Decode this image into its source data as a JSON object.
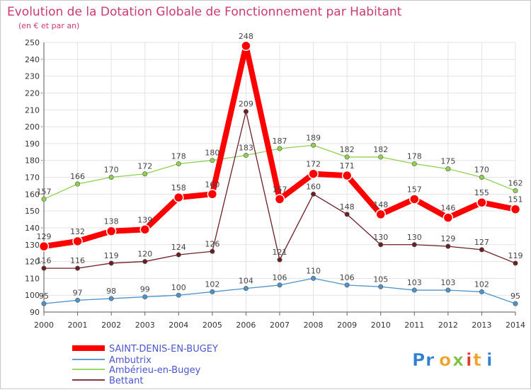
{
  "chart_data": {
    "type": "line",
    "title": "Evolution de la Dotation Globale de Fonctionnement par Habitant",
    "subtitle": "(en € et par an)",
    "xlabel": "",
    "ylabel": "",
    "x": [
      2000,
      2001,
      2002,
      2003,
      2004,
      2005,
      2006,
      2007,
      2008,
      2009,
      2010,
      2011,
      2012,
      2013,
      2014
    ],
    "ylim": [
      90,
      250
    ],
    "yticks": [
      90,
      100,
      110,
      120,
      130,
      140,
      150,
      160,
      170,
      180,
      190,
      200,
      210,
      220,
      230,
      240,
      250
    ],
    "grid": true,
    "legend_position": "bottom-left",
    "series": [
      {
        "name": "SAINT-DENIS-EN-BUGEY",
        "color": "#ff0000",
        "values": [
          129,
          132,
          138,
          139,
          158,
          160,
          248,
          157,
          172,
          171,
          148,
          157,
          146,
          155,
          151
        ]
      },
      {
        "name": "Ambutrix",
        "color": "#4d93c9",
        "values": [
          95,
          97,
          98,
          99,
          100,
          102,
          104,
          106,
          110,
          106,
          105,
          103,
          103,
          102,
          95
        ]
      },
      {
        "name": "Ambérieu-en-Bugey",
        "color": "#8fd14f",
        "values": [
          157,
          166,
          170,
          172,
          178,
          180,
          183,
          187,
          189,
          182,
          182,
          178,
          175,
          170,
          162
        ]
      },
      {
        "name": "Bettant",
        "color": "#6b1f24",
        "values": [
          116,
          116,
          119,
          120,
          124,
          126,
          209,
          121,
          160,
          148,
          130,
          130,
          129,
          127,
          119
        ]
      }
    ]
  },
  "branding": {
    "logo_text": "Proxiti",
    "letter_colors": [
      "#2e7fd1",
      "#2e7fd1",
      "#f2a22a",
      "#7cc143",
      "#e03a2f",
      "#f2a22a"
    ]
  }
}
